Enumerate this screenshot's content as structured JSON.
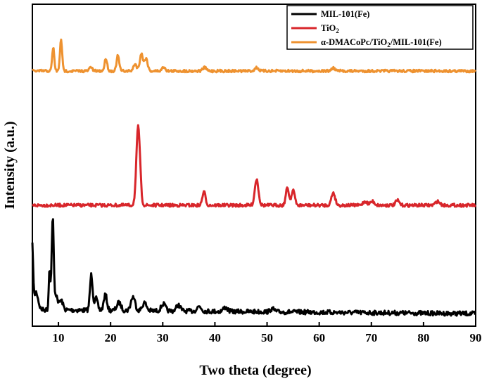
{
  "chart_data": {
    "type": "line",
    "xlabel": "Two theta (degree)",
    "ylabel": "Intensity (a.u.)",
    "xlim": [
      5,
      90
    ],
    "x_ticks": [
      "10",
      "20",
      "30",
      "40",
      "50",
      "60",
      "70",
      "80",
      "90"
    ],
    "y_ticks_shown": false,
    "grid": false,
    "legend_position": "top-right",
    "series": [
      {
        "name": "MIL-101(Fe)",
        "color": "#000000",
        "baseline": 0.04,
        "peaks": [
          [
            5.0,
            0.62,
            0.15
          ],
          [
            5.7,
            0.18,
            0.4
          ],
          [
            8.3,
            0.42,
            0.15
          ],
          [
            8.9,
            0.95,
            0.2
          ],
          [
            9.6,
            0.15,
            0.25
          ],
          [
            10.5,
            0.1,
            0.35
          ],
          [
            16.3,
            0.36,
            0.25
          ],
          [
            17.2,
            0.12,
            0.3
          ],
          [
            19.0,
            0.16,
            0.3
          ],
          [
            21.6,
            0.08,
            0.4
          ],
          [
            24.3,
            0.14,
            0.4
          ],
          [
            26.5,
            0.08,
            0.4
          ],
          [
            30.1,
            0.07,
            0.4
          ],
          [
            33.0,
            0.06,
            0.4
          ],
          [
            37.0,
            0.05,
            0.4
          ],
          [
            42.0,
            0.04,
            0.4
          ],
          [
            51.0,
            0.03,
            0.4
          ]
        ]
      },
      {
        "name": "TiO2",
        "color": "#d8262b",
        "baseline": 0.0,
        "peaks": [
          [
            25.3,
            1.0,
            0.35
          ],
          [
            37.9,
            0.17,
            0.3
          ],
          [
            48.0,
            0.33,
            0.35
          ],
          [
            53.9,
            0.22,
            0.3
          ],
          [
            55.0,
            0.2,
            0.3
          ],
          [
            62.7,
            0.16,
            0.35
          ],
          [
            68.8,
            0.05,
            0.4
          ],
          [
            70.2,
            0.05,
            0.4
          ],
          [
            75.0,
            0.06,
            0.35
          ],
          [
            82.7,
            0.05,
            0.4
          ]
        ]
      },
      {
        "name": "α-DMACoPc/TiO2/MIL-101(Fe)",
        "color": "#ee9230",
        "baseline": 0.0,
        "peaks": [
          [
            9.0,
            0.85,
            0.2
          ],
          [
            10.5,
            1.15,
            0.2
          ],
          [
            16.2,
            0.15,
            0.25
          ],
          [
            19.1,
            0.45,
            0.25
          ],
          [
            21.4,
            0.55,
            0.25
          ],
          [
            24.7,
            0.25,
            0.3
          ],
          [
            25.9,
            0.62,
            0.3
          ],
          [
            26.8,
            0.45,
            0.3
          ],
          [
            30.2,
            0.15,
            0.3
          ],
          [
            38.0,
            0.12,
            0.35
          ],
          [
            48.0,
            0.12,
            0.35
          ],
          [
            62.7,
            0.1,
            0.35
          ]
        ]
      }
    ]
  },
  "legend": {
    "entries": [
      {
        "base": "MIL-101(Fe)",
        "sub": "",
        "post": "",
        "color": "#000000"
      },
      {
        "base": "TiO",
        "sub": "2",
        "post": "",
        "color": "#d8262b"
      },
      {
        "base": "α-DMACoPc/TiO",
        "sub": "2",
        "post": "/MIL-101(Fe)",
        "color": "#ee9230"
      }
    ]
  }
}
